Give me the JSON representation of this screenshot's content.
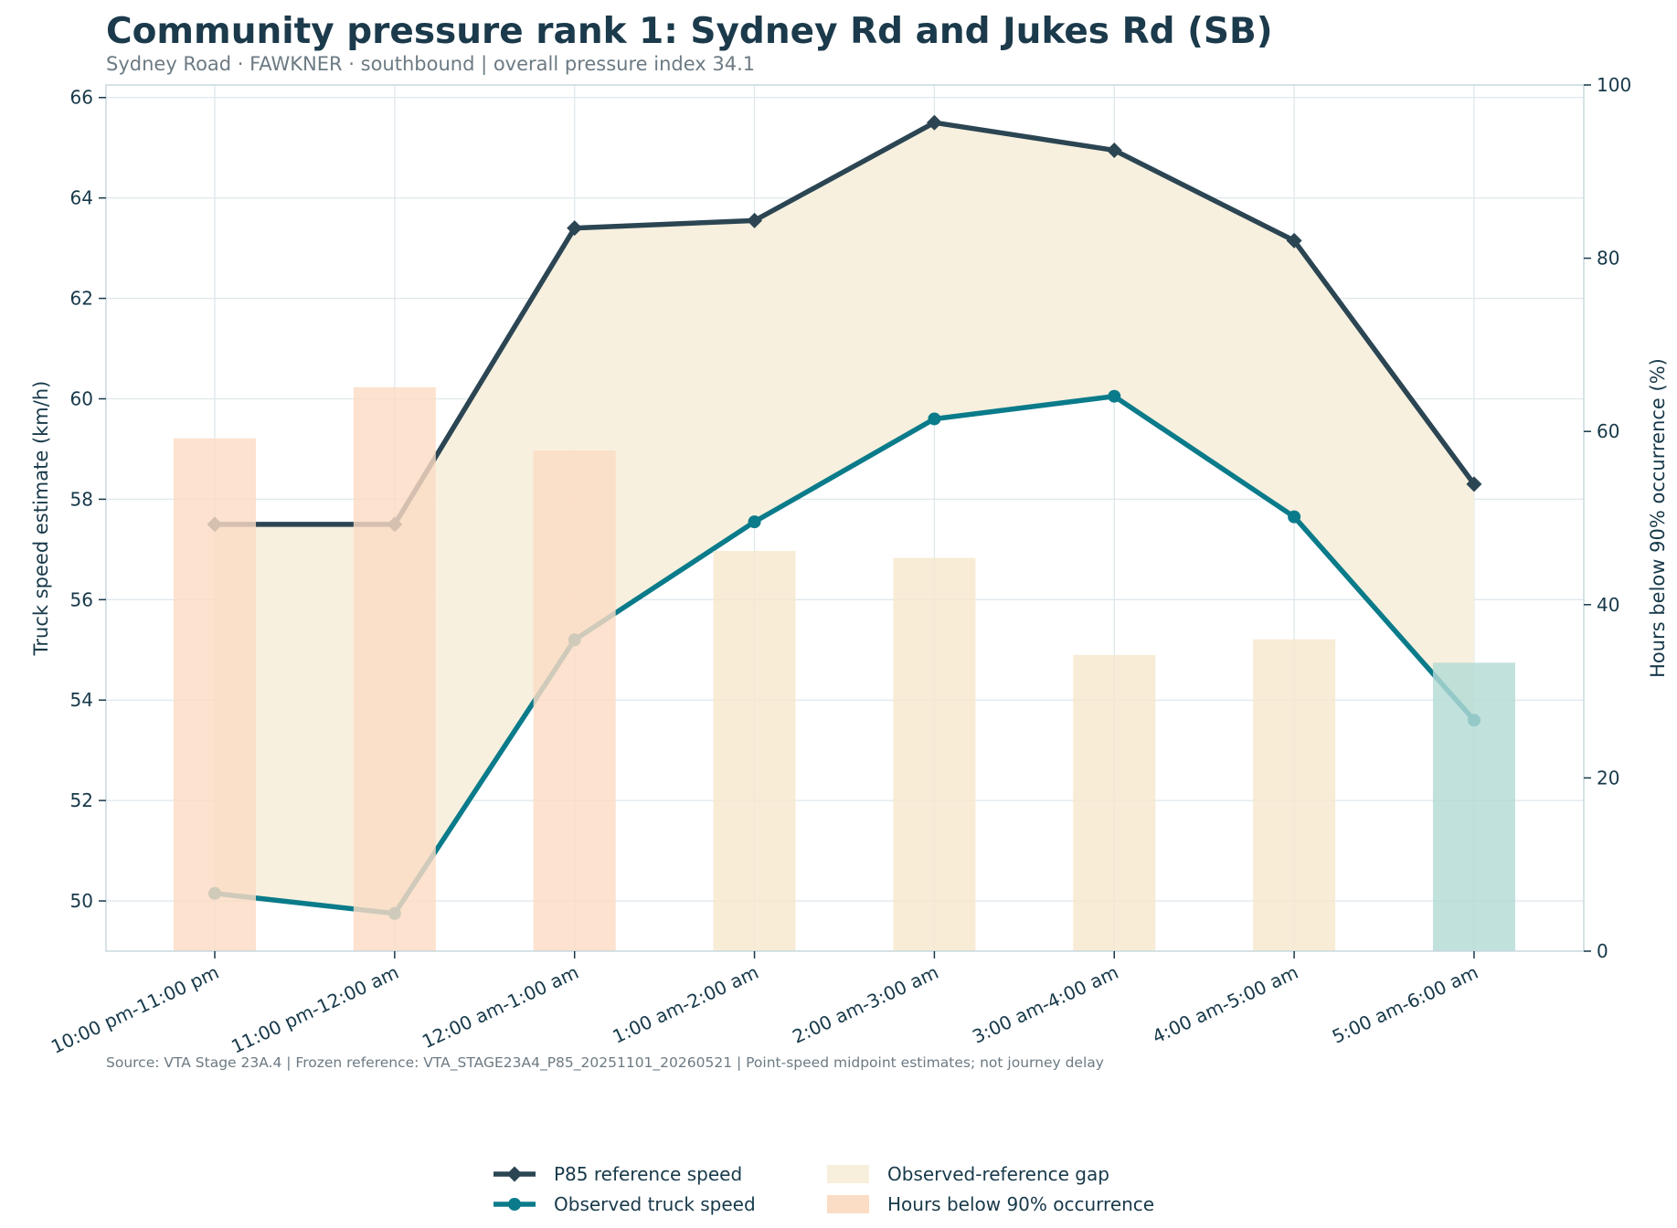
{
  "title": "Community pressure rank 1: Sydney Rd and Jukes Rd (SB)",
  "subtitle": "Sydney Road · FAWKNER · southbound | overall pressure index 34.1",
  "source": "Source: VTA Stage 23A.4 | Frozen reference: VTA_STAGE23A4_P85_20251101_20260521 | Point-speed midpoint estimates; not journey delay",
  "colors": {
    "reference": "#2b4553",
    "observed": "#0a7b8a",
    "gap_fill": "#f7efdc",
    "bar_high": "#fbdcc4",
    "bar_mid": "#f6e8cd",
    "bar_low": "#b3dbd6",
    "grid": "#dfe8ec",
    "axis": "#c9d8de",
    "text": "#17394a"
  },
  "chart_data": {
    "type": "line",
    "categories": [
      "10:00 pm-11:00 pm",
      "11:00 pm-12:00 am",
      "12:00 am-1:00 am",
      "1:00 am-2:00 am",
      "2:00 am-3:00 am",
      "3:00 am-4:00 am",
      "4:00 am-5:00 am",
      "5:00 am-6:00 am"
    ],
    "series": [
      {
        "name": "P85 reference speed",
        "axis": "left",
        "values": [
          57.5,
          57.5,
          63.4,
          63.55,
          65.5,
          64.95,
          63.15,
          58.3
        ]
      },
      {
        "name": "Observed truck speed",
        "axis": "left",
        "values": [
          50.15,
          49.75,
          55.2,
          57.55,
          59.6,
          60.05,
          57.65,
          53.6
        ]
      },
      {
        "name": "Hours below 90% occurrence",
        "axis": "right",
        "type": "bar",
        "values": [
          59.2,
          65.1,
          57.8,
          46.2,
          45.4,
          34.2,
          36.0,
          33.3
        ],
        "bar_colors": [
          "bar_high",
          "bar_high",
          "bar_high",
          "bar_mid",
          "bar_mid",
          "bar_mid",
          "bar_mid",
          "bar_low"
        ]
      }
    ],
    "fill_label": "Observed-reference gap",
    "ylabel": "Truck speed estimate (km/h)",
    "y2label": "Hours below 90% occurrence (%)",
    "ylim": [
      49,
      66.25
    ],
    "y2lim": [
      0,
      100
    ],
    "yticks": [
      50,
      52,
      54,
      56,
      58,
      60,
      62,
      64,
      66
    ],
    "y2ticks": [
      0,
      20,
      40,
      60,
      80,
      100
    ],
    "grid": true,
    "legend": [
      {
        "label": "P85 reference speed",
        "kind": "line-diamond",
        "color": "reference"
      },
      {
        "label": "Observed-reference gap",
        "kind": "patch",
        "color": "gap_fill"
      },
      {
        "label": "Observed truck speed",
        "kind": "line-dot",
        "color": "observed"
      },
      {
        "label": "Hours below 90% occurrence",
        "kind": "patch",
        "color": "bar_high"
      }
    ],
    "legend_position": "bottom-center"
  }
}
